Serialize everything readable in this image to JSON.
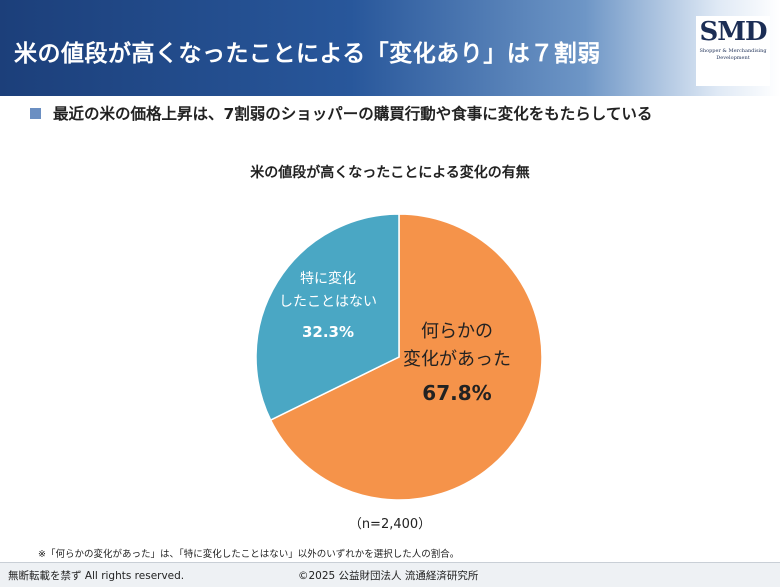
{
  "header": {
    "title": "米の値段が高くなったことによる「変化あり」は７割弱"
  },
  "logo": {
    "mark": "SMD",
    "sub_line1": "Shopper & Merchandising",
    "sub_line2": "Development"
  },
  "subtitle": "最近の米の価格上昇は、7割弱のショッパーの購買行動や食事に変化をもたらしている",
  "chart_data": {
    "type": "pie",
    "title": "米の値段が高くなったことによる変化の有無",
    "slices": [
      {
        "label_line1": "何らかの",
        "label_line2": "変化があった",
        "value": 67.8,
        "value_label": "67.8%",
        "color": "#f5934a"
      },
      {
        "label_line1": "特に変化",
        "label_line2": "したことはない",
        "value": 32.3,
        "value_label": "32.3%",
        "color": "#4aa7c4"
      }
    ],
    "start": "12 o'clock",
    "direction": "clockwise",
    "sample_note": "（n=2,400）"
  },
  "footnote": "※「何らかの変化があった」は、「特に変化したことはない」以外のいずれかを選択した人の割合。",
  "footer": {
    "left": "無断転載を禁ず  All rights reserved.",
    "right": "©2025  公益財団法人  流通経済研究所"
  },
  "colors": {
    "header_dark": "#1c3f7a",
    "bullet": "#6b8fc2",
    "slice_changed": "#f5934a",
    "slice_unchanged": "#4aa7c4"
  }
}
